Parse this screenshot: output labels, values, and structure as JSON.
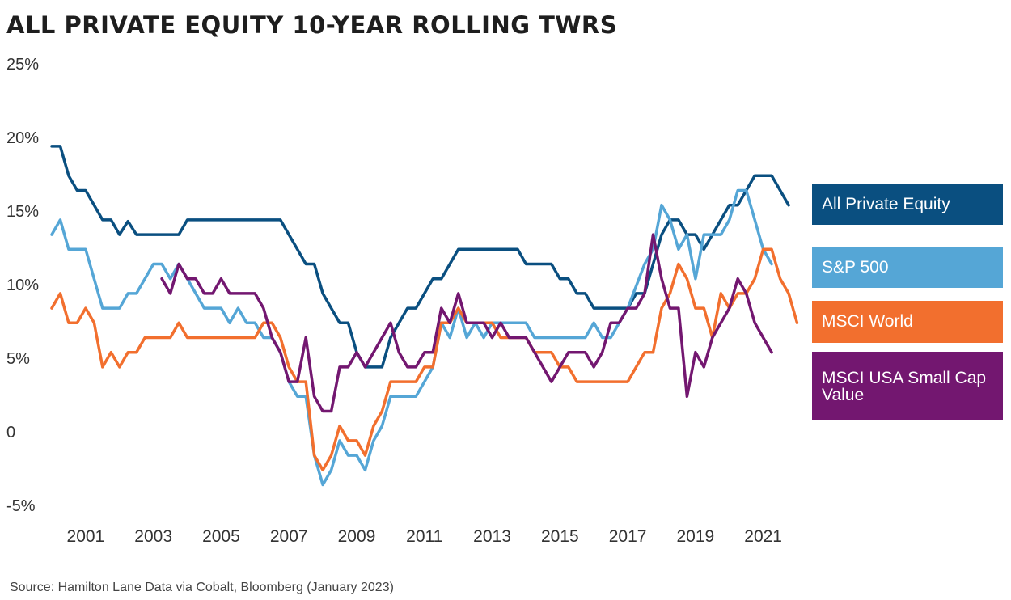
{
  "title": "ALL PRIVATE EQUITY 10-YEAR ROLLING TWRS",
  "source": "Source: Hamilton Lane Data via Cobalt, Bloomberg (January 2023)",
  "colors": {
    "all_private_equity": "#0a4f80",
    "sp500": "#55a6d6",
    "msci_world": "#f26f2e",
    "msci_usa_small_cap_value": "#731770"
  },
  "chart_data": {
    "type": "line",
    "title": "ALL PRIVATE EQUITY 10-YEAR ROLLING TWRS",
    "xlabel": "",
    "ylabel": "",
    "ylim": [
      -5,
      25
    ],
    "y_ticks": [
      25,
      20,
      15,
      10,
      5,
      0,
      -5
    ],
    "y_tick_labels": [
      "25%",
      "20%",
      "15%",
      "10%",
      "5%",
      "0",
      "-5%"
    ],
    "x_tick_labels": [
      "2001",
      "2003",
      "2005",
      "2007",
      "2009",
      "2011",
      "2013",
      "2015",
      "2017",
      "2019",
      "2021"
    ],
    "xlim": [
      2000.0,
      2022.25
    ],
    "grid": false,
    "legend_position": "right",
    "series": [
      {
        "key": "all_private_equity",
        "name": "All Private Equity",
        "points": [
          [
            2000.0,
            19.4
          ],
          [
            2000.25,
            19.4
          ],
          [
            2000.5,
            17.4
          ],
          [
            2000.75,
            16.4
          ],
          [
            2001.0,
            16.4
          ],
          [
            2001.25,
            15.4
          ],
          [
            2001.5,
            14.4
          ],
          [
            2001.75,
            14.4
          ],
          [
            2002.0,
            13.4
          ],
          [
            2002.25,
            14.3
          ],
          [
            2002.5,
            13.4
          ],
          [
            2003.0,
            13.4
          ],
          [
            2003.5,
            13.4
          ],
          [
            2003.75,
            13.4
          ],
          [
            2004.0,
            14.4
          ],
          [
            2005.0,
            14.4
          ],
          [
            2006.0,
            14.4
          ],
          [
            2006.75,
            14.4
          ],
          [
            2007.0,
            13.4
          ],
          [
            2007.5,
            11.4
          ],
          [
            2007.75,
            11.4
          ],
          [
            2008.0,
            9.4
          ],
          [
            2008.5,
            7.4
          ],
          [
            2008.75,
            7.4
          ],
          [
            2009.0,
            5.4
          ],
          [
            2009.25,
            4.4
          ],
          [
            2009.75,
            4.4
          ],
          [
            2010.0,
            6.4
          ],
          [
            2010.5,
            8.4
          ],
          [
            2010.75,
            8.4
          ],
          [
            2011.0,
            9.4
          ],
          [
            2011.25,
            10.4
          ],
          [
            2011.5,
            10.4
          ],
          [
            2011.75,
            11.4
          ],
          [
            2012.0,
            12.4
          ],
          [
            2013.0,
            12.4
          ],
          [
            2013.75,
            12.4
          ],
          [
            2014.0,
            11.4
          ],
          [
            2014.75,
            11.4
          ],
          [
            2015.0,
            10.4
          ],
          [
            2015.25,
            10.4
          ],
          [
            2015.5,
            9.4
          ],
          [
            2015.75,
            9.4
          ],
          [
            2016.0,
            8.4
          ],
          [
            2017.0,
            8.4
          ],
          [
            2017.25,
            9.4
          ],
          [
            2017.5,
            9.4
          ],
          [
            2017.75,
            11.4
          ],
          [
            2018.0,
            13.4
          ],
          [
            2018.25,
            14.4
          ],
          [
            2018.5,
            14.4
          ],
          [
            2018.75,
            13.4
          ],
          [
            2019.0,
            13.4
          ],
          [
            2019.25,
            12.4
          ],
          [
            2019.5,
            13.4
          ],
          [
            2019.75,
            14.4
          ],
          [
            2020.0,
            15.4
          ],
          [
            2020.25,
            15.4
          ],
          [
            2020.5,
            16.4
          ],
          [
            2020.75,
            17.4
          ],
          [
            2021.25,
            17.4
          ],
          [
            2021.5,
            16.4
          ],
          [
            2021.75,
            15.4
          ]
        ]
      },
      {
        "key": "sp500",
        "name": "S&P 500",
        "points": [
          [
            2000.0,
            13.4
          ],
          [
            2000.25,
            14.4
          ],
          [
            2000.5,
            12.4
          ],
          [
            2001.0,
            12.4
          ],
          [
            2001.5,
            8.4
          ],
          [
            2002.0,
            8.4
          ],
          [
            2002.25,
            9.4
          ],
          [
            2002.5,
            9.4
          ],
          [
            2003.0,
            11.4
          ],
          [
            2003.25,
            11.4
          ],
          [
            2003.5,
            10.4
          ],
          [
            2003.75,
            11.4
          ],
          [
            2004.0,
            10.4
          ],
          [
            2004.5,
            8.4
          ],
          [
            2005.0,
            8.4
          ],
          [
            2005.25,
            7.4
          ],
          [
            2005.5,
            8.4
          ],
          [
            2005.75,
            7.4
          ],
          [
            2006.0,
            7.4
          ],
          [
            2006.25,
            6.4
          ],
          [
            2006.5,
            6.4
          ],
          [
            2006.75,
            5.4
          ],
          [
            2007.0,
            3.4
          ],
          [
            2007.25,
            2.4
          ],
          [
            2007.5,
            2.4
          ],
          [
            2007.75,
            -1.6
          ],
          [
            2008.0,
            -3.6
          ],
          [
            2008.25,
            -2.6
          ],
          [
            2008.5,
            -0.6
          ],
          [
            2008.75,
            -1.6
          ],
          [
            2009.0,
            -1.6
          ],
          [
            2009.25,
            -2.6
          ],
          [
            2009.5,
            -0.6
          ],
          [
            2009.75,
            0.4
          ],
          [
            2010.0,
            2.4
          ],
          [
            2010.75,
            2.4
          ],
          [
            2011.0,
            3.4
          ],
          [
            2011.25,
            4.4
          ],
          [
            2011.5,
            7.4
          ],
          [
            2011.75,
            6.4
          ],
          [
            2012.0,
            8.4
          ],
          [
            2012.25,
            6.4
          ],
          [
            2012.5,
            7.4
          ],
          [
            2012.75,
            6.4
          ],
          [
            2013.0,
            7.4
          ],
          [
            2014.0,
            7.4
          ],
          [
            2014.25,
            6.4
          ],
          [
            2015.75,
            6.4
          ],
          [
            2016.0,
            7.4
          ],
          [
            2016.25,
            6.4
          ],
          [
            2016.5,
            6.4
          ],
          [
            2016.75,
            7.4
          ],
          [
            2017.0,
            8.4
          ],
          [
            2017.5,
            11.4
          ],
          [
            2017.75,
            12.4
          ],
          [
            2018.0,
            15.4
          ],
          [
            2018.25,
            14.4
          ],
          [
            2018.5,
            12.4
          ],
          [
            2018.75,
            13.4
          ],
          [
            2019.0,
            10.4
          ],
          [
            2019.25,
            13.4
          ],
          [
            2019.75,
            13.4
          ],
          [
            2020.0,
            14.4
          ],
          [
            2020.25,
            16.4
          ],
          [
            2020.5,
            16.4
          ],
          [
            2020.75,
            14.4
          ],
          [
            2021.0,
            12.4
          ],
          [
            2021.25,
            11.4
          ]
        ]
      },
      {
        "key": "msci_world",
        "name": "MSCI World",
        "points": [
          [
            2000.0,
            8.4
          ],
          [
            2000.25,
            9.4
          ],
          [
            2000.5,
            7.4
          ],
          [
            2000.75,
            7.4
          ],
          [
            2001.0,
            8.4
          ],
          [
            2001.25,
            7.4
          ],
          [
            2001.5,
            4.4
          ],
          [
            2001.75,
            5.4
          ],
          [
            2002.0,
            4.4
          ],
          [
            2002.25,
            5.4
          ],
          [
            2002.5,
            5.4
          ],
          [
            2002.75,
            6.4
          ],
          [
            2003.5,
            6.4
          ],
          [
            2003.75,
            7.4
          ],
          [
            2004.0,
            6.4
          ],
          [
            2006.0,
            6.4
          ],
          [
            2006.25,
            7.4
          ],
          [
            2006.5,
            7.4
          ],
          [
            2006.75,
            6.4
          ],
          [
            2007.0,
            4.4
          ],
          [
            2007.25,
            3.4
          ],
          [
            2007.5,
            3.4
          ],
          [
            2007.75,
            -1.6
          ],
          [
            2008.0,
            -2.6
          ],
          [
            2008.25,
            -1.6
          ],
          [
            2008.5,
            0.4
          ],
          [
            2008.75,
            -0.6
          ],
          [
            2009.0,
            -0.6
          ],
          [
            2009.25,
            -1.6
          ],
          [
            2009.5,
            0.4
          ],
          [
            2009.75,
            1.4
          ],
          [
            2010.0,
            3.4
          ],
          [
            2010.75,
            3.4
          ],
          [
            2011.0,
            4.4
          ],
          [
            2011.25,
            4.4
          ],
          [
            2011.5,
            7.4
          ],
          [
            2011.75,
            7.4
          ],
          [
            2012.0,
            8.4
          ],
          [
            2012.25,
            7.4
          ],
          [
            2013.0,
            7.4
          ],
          [
            2013.25,
            6.4
          ],
          [
            2014.0,
            6.4
          ],
          [
            2014.25,
            5.4
          ],
          [
            2014.75,
            5.4
          ],
          [
            2015.0,
            4.4
          ],
          [
            2015.25,
            4.4
          ],
          [
            2015.5,
            3.4
          ],
          [
            2017.0,
            3.4
          ],
          [
            2017.5,
            5.4
          ],
          [
            2017.75,
            5.4
          ],
          [
            2018.0,
            8.4
          ],
          [
            2018.25,
            9.4
          ],
          [
            2018.5,
            11.4
          ],
          [
            2018.75,
            10.4
          ],
          [
            2019.0,
            8.4
          ],
          [
            2019.25,
            8.4
          ],
          [
            2019.5,
            6.4
          ],
          [
            2019.75,
            9.4
          ],
          [
            2020.0,
            8.4
          ],
          [
            2020.25,
            9.4
          ],
          [
            2020.5,
            9.4
          ],
          [
            2020.75,
            10.4
          ],
          [
            2021.0,
            12.4
          ],
          [
            2021.25,
            12.4
          ],
          [
            2021.5,
            10.4
          ],
          [
            2021.75,
            9.4
          ],
          [
            2022.0,
            7.4
          ]
        ]
      },
      {
        "key": "msci_usa_small_cap_value",
        "name": "MSCI USA Small Cap Value",
        "points": [
          [
            2003.25,
            10.4
          ],
          [
            2003.5,
            9.4
          ],
          [
            2003.75,
            11.4
          ],
          [
            2004.0,
            10.4
          ],
          [
            2004.25,
            10.4
          ],
          [
            2004.5,
            9.4
          ],
          [
            2004.75,
            9.4
          ],
          [
            2005.0,
            10.4
          ],
          [
            2005.25,
            9.4
          ],
          [
            2006.0,
            9.4
          ],
          [
            2006.25,
            8.4
          ],
          [
            2006.5,
            6.4
          ],
          [
            2006.75,
            5.4
          ],
          [
            2007.0,
            3.4
          ],
          [
            2007.25,
            3.4
          ],
          [
            2007.5,
            6.4
          ],
          [
            2007.75,
            2.4
          ],
          [
            2008.0,
            1.4
          ],
          [
            2008.25,
            1.4
          ],
          [
            2008.5,
            4.4
          ],
          [
            2008.75,
            4.4
          ],
          [
            2009.0,
            5.4
          ],
          [
            2009.25,
            4.4
          ],
          [
            2009.5,
            5.4
          ],
          [
            2009.75,
            6.4
          ],
          [
            2010.0,
            7.4
          ],
          [
            2010.25,
            5.4
          ],
          [
            2010.5,
            4.4
          ],
          [
            2010.75,
            4.4
          ],
          [
            2011.0,
            5.4
          ],
          [
            2011.25,
            5.4
          ],
          [
            2011.5,
            8.4
          ],
          [
            2011.75,
            7.4
          ],
          [
            2012.0,
            9.4
          ],
          [
            2012.25,
            7.4
          ],
          [
            2012.75,
            7.4
          ],
          [
            2013.0,
            6.4
          ],
          [
            2013.25,
            7.4
          ],
          [
            2013.5,
            6.4
          ],
          [
            2014.0,
            6.4
          ],
          [
            2014.25,
            5.4
          ],
          [
            2014.75,
            3.4
          ],
          [
            2015.0,
            4.4
          ],
          [
            2015.25,
            5.4
          ],
          [
            2015.75,
            5.4
          ],
          [
            2016.0,
            4.4
          ],
          [
            2016.25,
            5.4
          ],
          [
            2016.5,
            7.4
          ],
          [
            2016.75,
            7.4
          ],
          [
            2017.0,
            8.4
          ],
          [
            2017.25,
            8.4
          ],
          [
            2017.5,
            9.4
          ],
          [
            2017.75,
            13.4
          ],
          [
            2018.0,
            10.4
          ],
          [
            2018.25,
            8.4
          ],
          [
            2018.5,
            8.4
          ],
          [
            2018.75,
            2.4
          ],
          [
            2019.0,
            5.4
          ],
          [
            2019.25,
            4.4
          ],
          [
            2019.5,
            6.4
          ],
          [
            2019.75,
            7.4
          ],
          [
            2020.0,
            8.4
          ],
          [
            2020.25,
            10.4
          ],
          [
            2020.5,
            9.4
          ],
          [
            2020.75,
            7.4
          ],
          [
            2021.0,
            6.4
          ],
          [
            2021.25,
            5.4
          ]
        ]
      }
    ]
  },
  "legend": [
    {
      "label": "All Private Equity",
      "color": "#0a4f80"
    },
    {
      "label": "S&P 500",
      "color": "#55a6d6"
    },
    {
      "label": "MSCI World",
      "color": "#f26f2e"
    },
    {
      "label": "MSCI USA Small Cap Value",
      "color": "#731770"
    }
  ]
}
